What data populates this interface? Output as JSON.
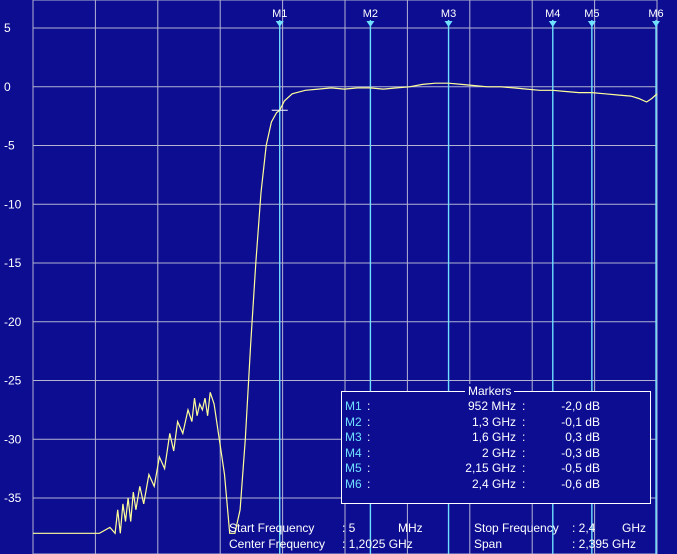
{
  "chart_data": {
    "type": "line",
    "ylim": [
      -38,
      5.5
    ],
    "xlim_mhz": [
      5,
      2400
    ],
    "y_ticks": [
      "5",
      "0",
      "-5",
      "-10",
      "-15",
      "-20",
      "-25",
      "-30",
      "-35"
    ],
    "y_tick_values": [
      5,
      0,
      -5,
      -10,
      -15,
      -20,
      -25,
      -30,
      -35
    ],
    "grid": true,
    "colors": {
      "background": "#0d0d92",
      "grid": "#b4b4d2",
      "trace": "#ffff99",
      "marker": "#6fe0ff"
    },
    "series": [
      {
        "x": [
          5,
          100,
          200,
          260,
          300,
          320,
          330,
          340,
          350,
          360,
          370,
          380,
          390,
          400,
          415,
          430,
          450,
          470,
          490,
          510,
          530,
          545,
          560,
          580,
          600,
          615,
          625,
          635,
          645,
          655,
          665,
          675,
          685,
          700,
          720,
          740,
          760,
          780,
          800,
          820,
          840,
          860,
          880,
          900,
          920,
          940,
          952,
          970,
          1000,
          1050,
          1100,
          1150,
          1200,
          1250,
          1300,
          1350,
          1400,
          1450,
          1500,
          1550,
          1600,
          1650,
          1700,
          1750,
          1800,
          1850,
          1900,
          1950,
          2000,
          2050,
          2100,
          2150,
          2200,
          2250,
          2300,
          2330,
          2360,
          2380,
          2400
        ],
        "y": [
          -38,
          -38,
          -38,
          -38,
          -37.5,
          -38,
          -36,
          -38,
          -35.5,
          -37,
          -35,
          -37,
          -34.5,
          -36,
          -34,
          -35.5,
          -33,
          -34,
          -31.5,
          -32.5,
          -29.5,
          -31,
          -28.5,
          -29.5,
          -27.5,
          -28.5,
          -26.5,
          -28,
          -27,
          -27.5,
          -26.5,
          -28,
          -26,
          -27,
          -30,
          -33,
          -38,
          -38,
          -36,
          -30,
          -22,
          -15,
          -9,
          -5,
          -3,
          -2.2,
          -2.0,
          -1.2,
          -0.6,
          -0.3,
          -0.2,
          -0.1,
          -0.2,
          -0.1,
          -0.1,
          -0.2,
          -0.1,
          0.0,
          0.2,
          0.3,
          0.3,
          0.2,
          0.1,
          0.0,
          0.0,
          -0.1,
          -0.2,
          -0.3,
          -0.3,
          -0.4,
          -0.5,
          -0.5,
          -0.6,
          -0.7,
          -0.8,
          -1.0,
          -1.3,
          -1.0,
          -0.6
        ]
      }
    ],
    "markers": [
      {
        "label": "M1",
        "x": 952
      },
      {
        "label": "M2",
        "x": 1300
      },
      {
        "label": "M3",
        "x": 1600
      },
      {
        "label": "M4",
        "x": 2000
      },
      {
        "label": "M5",
        "x": 2150
      },
      {
        "label": "M6",
        "x": 2400
      }
    ]
  },
  "markers_table": {
    "title": "Markers",
    "rows": [
      {
        "name": "M1",
        "c1": ":",
        "freq": "952 MHz",
        "c2": ":",
        "value": "-2,0 dB"
      },
      {
        "name": "M2",
        "c1": ":",
        "freq": "1,3 GHz",
        "c2": ":",
        "value": "-0,1 dB"
      },
      {
        "name": "M3",
        "c1": ":",
        "freq": "1,6 GHz",
        "c2": ":",
        "value": "0,3 dB"
      },
      {
        "name": "M4",
        "c1": ":",
        "freq": "2 GHz",
        "c2": ":",
        "value": "-0,3 dB"
      },
      {
        "name": "M5",
        "c1": ":",
        "freq": "2,15 GHz",
        "c2": ":",
        "value": "-0,5 dB"
      },
      {
        "name": "M6",
        "c1": ":",
        "freq": "2,4 GHz",
        "c2": ":",
        "value": "-0,6 dB"
      }
    ]
  },
  "info": {
    "start_label": "Start Frequency",
    "start_value": ": 5",
    "start_unit": "MHz",
    "center_label": "Center Frequency",
    "center_value": ": 1,2025 GHz",
    "stop_label": "Stop Frequency",
    "stop_value": ": 2,4",
    "stop_unit": "GHz",
    "span_label": "Span",
    "span_value": ": 2,395 GHz"
  }
}
